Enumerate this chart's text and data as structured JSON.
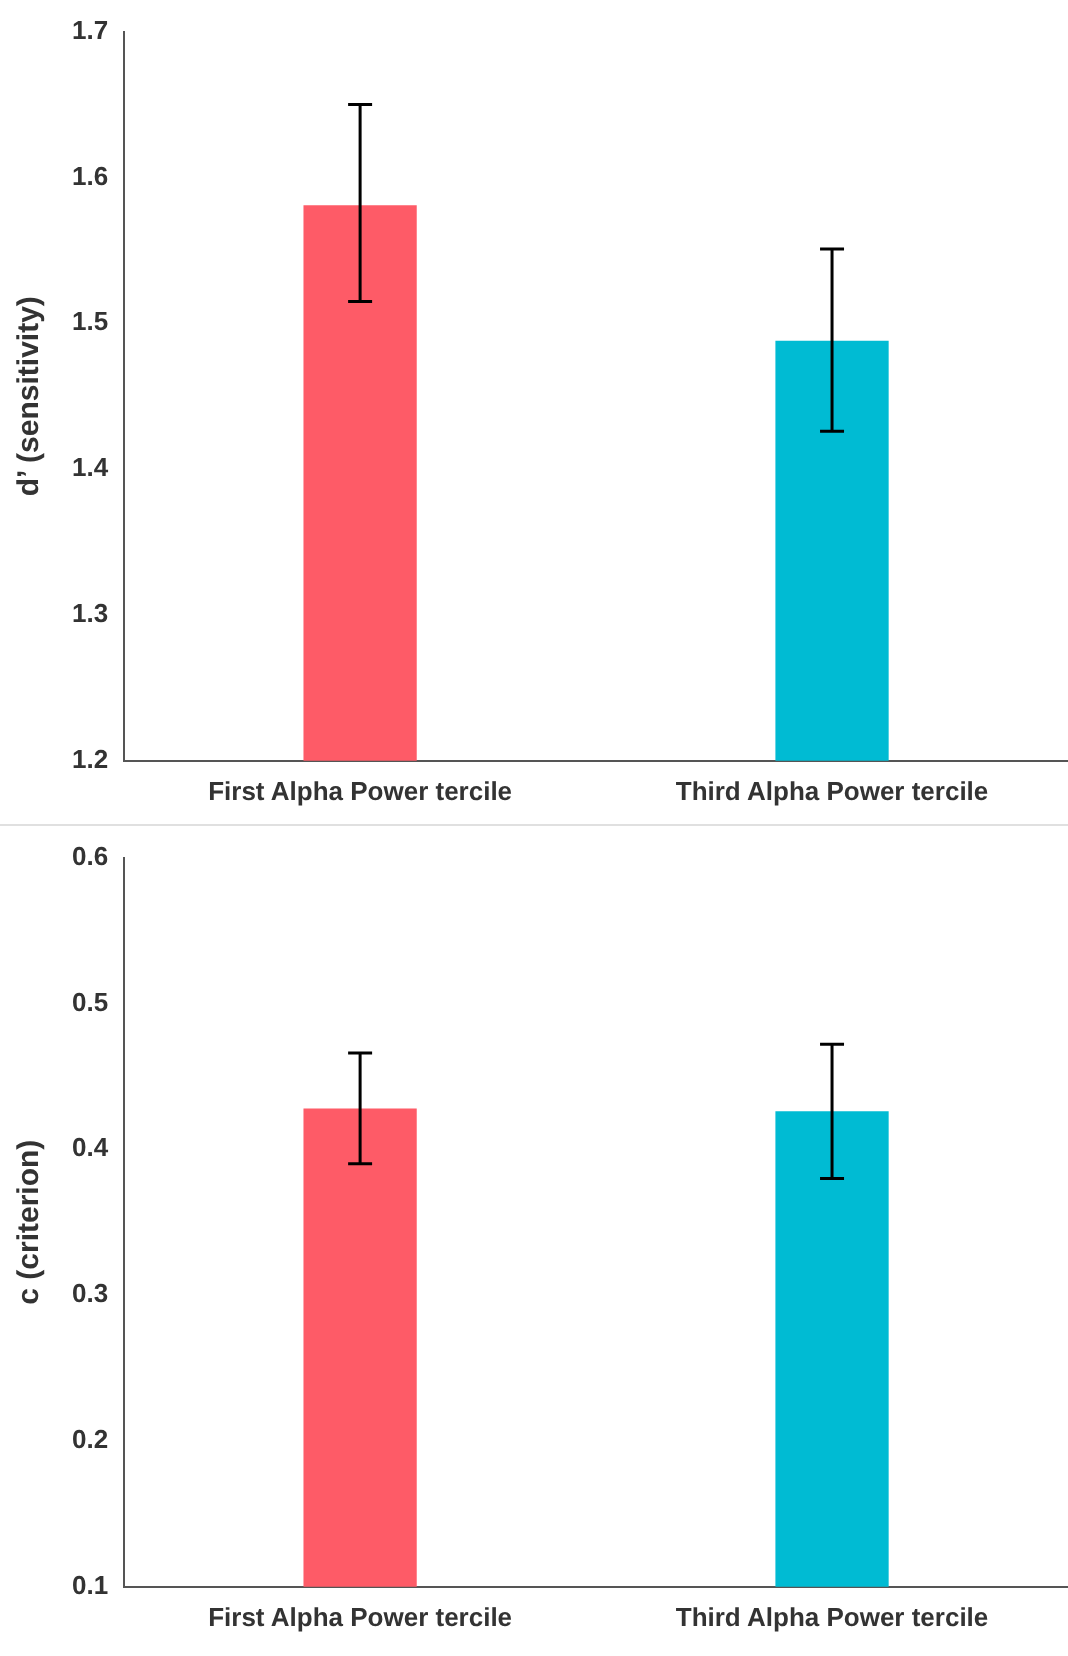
{
  "chart_data": [
    {
      "type": "bar",
      "ylabel": "d’ (sensitivity)",
      "categories": [
        "First Alpha Power tercile",
        "Third Alpha Power tercile"
      ],
      "values": [
        1.581,
        1.488
      ],
      "colors": [
        "#fe5b67",
        "#00bbd3"
      ],
      "errors": [
        [
          1.515,
          1.65
        ],
        [
          1.426,
          1.551
        ]
      ],
      "ylim": [
        1.2,
        1.7
      ],
      "yticks": [
        1.2,
        1.3,
        1.4,
        1.5,
        1.6,
        1.7
      ],
      "grid": false,
      "legend": false
    },
    {
      "type": "bar",
      "ylabel": "c (criterion)",
      "categories": [
        "First Alpha Power tercile",
        "Third Alpha Power tercile"
      ],
      "values": [
        0.428,
        0.426
      ],
      "colors": [
        "#fe5b67",
        "#00bbd3"
      ],
      "errors": [
        [
          0.39,
          0.466
        ],
        [
          0.38,
          0.472
        ]
      ],
      "ylim": [
        0.1,
        0.6
      ],
      "yticks": [
        0.1,
        0.2,
        0.3,
        0.4,
        0.5,
        0.6
      ],
      "grid": false,
      "legend": false
    }
  ]
}
